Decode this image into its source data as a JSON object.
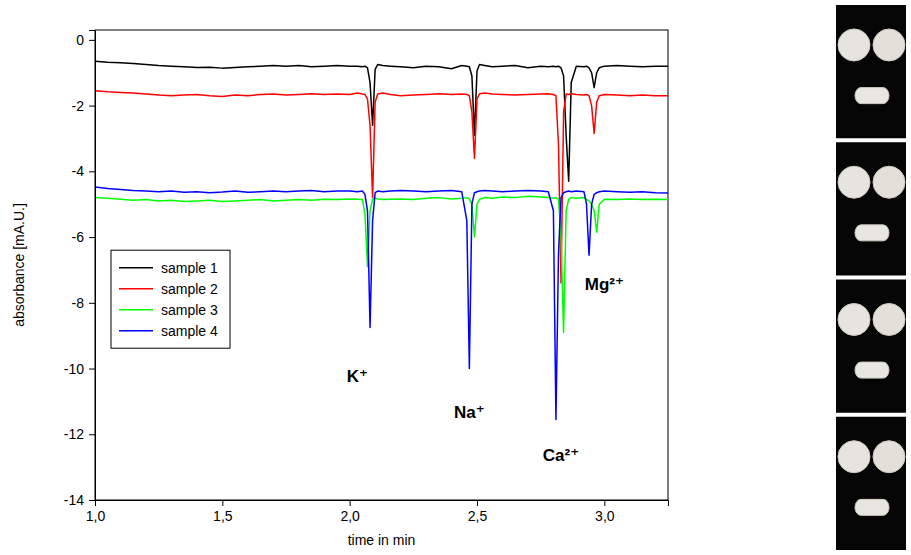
{
  "chart_data": {
    "type": "line",
    "x_label": "time in min",
    "y_label": "absorbance [mA.U.]",
    "xlim": [
      1.0,
      3.25
    ],
    "ylim": [
      -14,
      0.3
    ],
    "xticks": [
      {
        "value": 1.0,
        "label": "1,0"
      },
      {
        "value": 1.5,
        "label": "1,5"
      },
      {
        "value": 2.0,
        "label": "2,0"
      },
      {
        "value": 2.5,
        "label": "2,5"
      },
      {
        "value": 3.0,
        "label": "3,0"
      }
    ],
    "yticks": [
      0,
      -2,
      -4,
      -6,
      -8,
      -10,
      -12,
      -14
    ],
    "legend": "lower left",
    "x": [
      1.0,
      1.05,
      1.1,
      1.15,
      1.2,
      1.25,
      1.3,
      1.35,
      1.4,
      1.45,
      1.5,
      1.55,
      1.6,
      1.65,
      1.7,
      1.75,
      1.8,
      1.85,
      1.9,
      1.95,
      2.0,
      2.03,
      2.05,
      2.06,
      2.07,
      2.08,
      2.09,
      2.1,
      2.11,
      2.13,
      2.16,
      2.2,
      2.25,
      2.3,
      2.35,
      2.4,
      2.44,
      2.46,
      2.47,
      2.48,
      2.49,
      2.5,
      2.51,
      2.53,
      2.56,
      2.6,
      2.65,
      2.7,
      2.75,
      2.78,
      2.8,
      2.81,
      2.82,
      2.83,
      2.84,
      2.85,
      2.86,
      2.87,
      2.89,
      2.92,
      2.93,
      2.94,
      2.95,
      2.96,
      2.97,
      2.98,
      3.0,
      3.05,
      3.1,
      3.15,
      3.2,
      3.25
    ],
    "series": [
      {
        "name": "sample 1",
        "color": "#000000",
        "values": [
          -0.65,
          -0.68,
          -0.7,
          -0.72,
          -0.75,
          -0.78,
          -0.8,
          -0.82,
          -0.84,
          -0.83,
          -0.86,
          -0.84,
          -0.82,
          -0.8,
          -0.78,
          -0.8,
          -0.78,
          -0.82,
          -0.8,
          -0.78,
          -0.8,
          -0.8,
          -0.82,
          -0.8,
          -0.85,
          -1.3,
          -2.6,
          -0.9,
          -0.75,
          -0.78,
          -0.8,
          -0.82,
          -0.85,
          -0.8,
          -0.82,
          -0.88,
          -0.78,
          -0.8,
          -0.82,
          -1.1,
          -2.9,
          -0.95,
          -0.75,
          -0.78,
          -0.82,
          -0.8,
          -0.78,
          -0.85,
          -0.8,
          -0.82,
          -0.8,
          -0.82,
          -0.8,
          -0.85,
          -1.1,
          -2.9,
          -4.3,
          -1.3,
          -0.8,
          -0.82,
          -0.8,
          -0.85,
          -1.0,
          -1.45,
          -1.0,
          -0.85,
          -0.8,
          -0.78,
          -0.8,
          -0.82,
          -0.8,
          -0.8
        ]
      },
      {
        "name": "sample 2",
        "color": "#ff0000",
        "values": [
          -1.55,
          -1.58,
          -1.6,
          -1.62,
          -1.65,
          -1.68,
          -1.7,
          -1.68,
          -1.66,
          -1.7,
          -1.72,
          -1.68,
          -1.7,
          -1.66,
          -1.65,
          -1.68,
          -1.66,
          -1.64,
          -1.66,
          -1.65,
          -1.66,
          -1.62,
          -1.65,
          -1.66,
          -1.8,
          -2.6,
          -4.8,
          -1.9,
          -1.65,
          -1.62,
          -1.66,
          -1.7,
          -1.68,
          -1.66,
          -1.64,
          -1.66,
          -1.65,
          -1.66,
          -1.7,
          -2.2,
          -3.6,
          -1.8,
          -1.64,
          -1.62,
          -1.65,
          -1.66,
          -1.68,
          -1.66,
          -1.65,
          -1.64,
          -1.66,
          -1.7,
          -3.2,
          -7.4,
          -2.2,
          -1.65,
          -1.66,
          -1.64,
          -1.66,
          -1.68,
          -1.66,
          -1.7,
          -2.0,
          -2.85,
          -1.9,
          -1.7,
          -1.66,
          -1.68,
          -1.7,
          -1.68,
          -1.7,
          -1.7
        ]
      },
      {
        "name": "sample 3",
        "color": "#00ff00",
        "values": [
          -4.8,
          -4.82,
          -4.85,
          -4.88,
          -4.86,
          -4.9,
          -4.88,
          -4.92,
          -4.9,
          -4.88,
          -4.92,
          -4.9,
          -4.88,
          -4.86,
          -4.9,
          -4.88,
          -4.86,
          -4.88,
          -4.85,
          -4.86,
          -4.84,
          -4.85,
          -4.86,
          -5.3,
          -6.9,
          -5.2,
          -4.85,
          -4.82,
          -4.84,
          -4.86,
          -4.85,
          -4.84,
          -4.86,
          -4.82,
          -4.8,
          -4.84,
          -4.82,
          -4.8,
          -4.84,
          -5.0,
          -6.0,
          -5.0,
          -4.85,
          -4.8,
          -4.82,
          -4.78,
          -4.8,
          -4.76,
          -4.78,
          -4.8,
          -4.82,
          -4.8,
          -4.85,
          -6.0,
          -8.9,
          -5.2,
          -4.85,
          -4.8,
          -4.82,
          -4.8,
          -4.85,
          -4.9,
          -5.0,
          -5.2,
          -5.85,
          -5.0,
          -4.85,
          -4.86,
          -4.84,
          -4.86,
          -4.85,
          -4.86
        ]
      },
      {
        "name": "sample 4",
        "color": "#0000ff",
        "values": [
          -4.48,
          -4.52,
          -4.55,
          -4.58,
          -4.6,
          -4.62,
          -4.6,
          -4.64,
          -4.62,
          -4.65,
          -4.63,
          -4.6,
          -4.64,
          -4.62,
          -4.6,
          -4.62,
          -4.6,
          -4.58,
          -4.62,
          -4.6,
          -4.6,
          -4.62,
          -4.6,
          -4.7,
          -5.2,
          -8.75,
          -5.5,
          -4.65,
          -4.6,
          -4.62,
          -4.6,
          -4.58,
          -4.6,
          -4.62,
          -4.6,
          -4.58,
          -4.62,
          -5.5,
          -10.0,
          -5.0,
          -4.65,
          -4.62,
          -4.6,
          -4.58,
          -4.6,
          -4.62,
          -4.6,
          -4.58,
          -4.6,
          -4.62,
          -5.2,
          -11.55,
          -6.5,
          -4.8,
          -4.65,
          -4.62,
          -4.6,
          -4.62,
          -4.6,
          -4.62,
          -5.0,
          -6.55,
          -5.0,
          -4.7,
          -4.65,
          -4.62,
          -4.6,
          -4.62,
          -4.64,
          -4.62,
          -4.65,
          -4.66
        ]
      }
    ],
    "annotations": [
      {
        "text": "K⁺",
        "x": 2.03,
        "y": -10.4
      },
      {
        "text": "Na⁺",
        "x": 2.47,
        "y": -11.5
      },
      {
        "text": "Ca²⁺",
        "x": 2.83,
        "y": -12.8
      },
      {
        "text": "Mg²⁺",
        "x": 3.0,
        "y": -7.6
      }
    ]
  }
}
